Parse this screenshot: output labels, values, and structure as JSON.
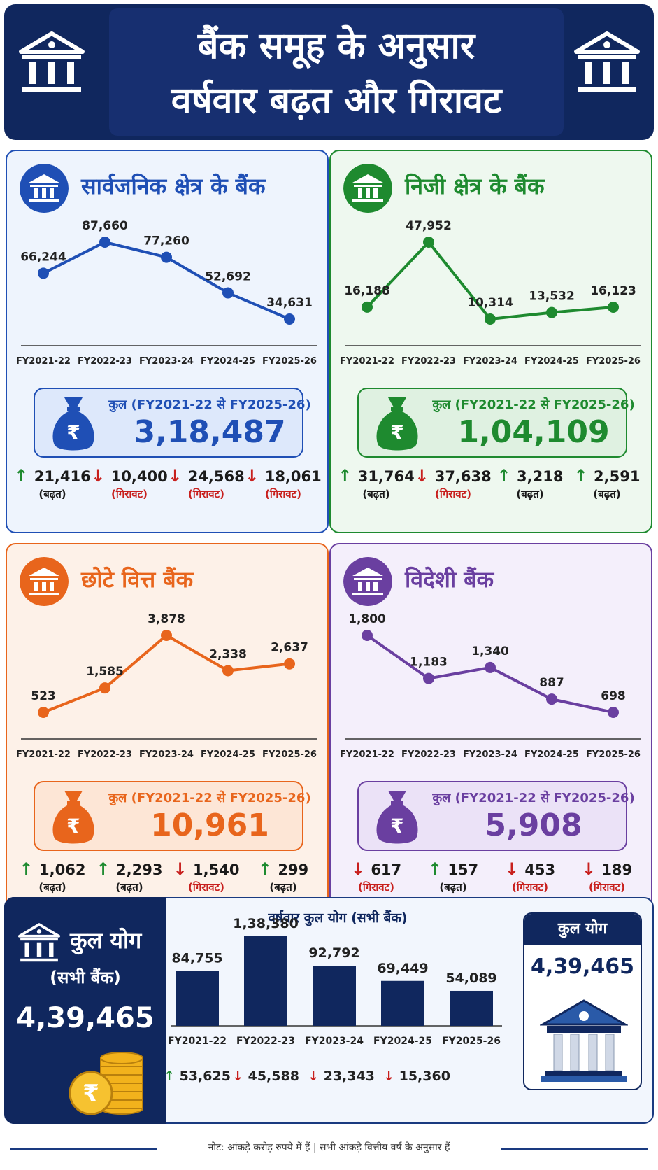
{
  "header": {
    "title_line1": "बैंक समूह के अनुसार",
    "title_line2": "वर्षवार बढ़त और गिरावट"
  },
  "colors": {
    "navy": "#10275e",
    "public": "#1f4fb5",
    "private": "#1e8a2f",
    "small": "#e8651c",
    "foreign": "#6a3fa0",
    "up": "#1e8a2f",
    "down": "#c8201e"
  },
  "panels": [
    {
      "title": "सार्वजनिक क्षेत्र के बैंक",
      "total_label": "कुल (FY2021-22 से FY2025-26)",
      "total_value": "3,18,487",
      "changes": [
        {
          "value": "21,416",
          "label": "(बढ़त)",
          "dir": "up"
        },
        {
          "value": "10,400",
          "label": "(गिरावट)",
          "dir": "down"
        },
        {
          "value": "24,568",
          "label": "(गिरावट)",
          "dir": "down"
        },
        {
          "value": "18,061",
          "label": "(गिरावट)",
          "dir": "down"
        }
      ]
    },
    {
      "title": "निजी क्षेत्र के बैंक",
      "total_label": "कुल (FY2021-22 से FY2025-26)",
      "total_value": "1,04,109",
      "changes": [
        {
          "value": "31,764",
          "label": "(बढ़त)",
          "dir": "up"
        },
        {
          "value": "37,638",
          "label": "(गिरावट)",
          "dir": "down"
        },
        {
          "value": "3,218",
          "label": "(बढ़त)",
          "dir": "up"
        },
        {
          "value": "2,591",
          "label": "(बढ़त)",
          "dir": "up"
        }
      ]
    },
    {
      "title": "छोटे वित्त बैंक",
      "total_label": "कुल (FY2021-22 से FY2025-26)",
      "total_value": "10,961",
      "changes": [
        {
          "value": "1,062",
          "label": "(बढ़त)",
          "dir": "up"
        },
        {
          "value": "2,293",
          "label": "(बढ़त)",
          "dir": "up"
        },
        {
          "value": "1,540",
          "label": "(गिरावट)",
          "dir": "down"
        },
        {
          "value": "299",
          "label": "(बढ़त)",
          "dir": "up"
        }
      ]
    },
    {
      "title": "विदेशी बैंक",
      "total_label": "कुल (FY2021-22 से FY2025-26)",
      "total_value": "5,908",
      "changes": [
        {
          "value": "617",
          "label": "(गिरावट)",
          "dir": "down"
        },
        {
          "value": "157",
          "label": "(बढ़त)",
          "dir": "up"
        },
        {
          "value": "453",
          "label": "(गिरावट)",
          "dir": "down"
        },
        {
          "value": "189",
          "label": "(गिरावट)",
          "dir": "down"
        }
      ]
    }
  ],
  "bottom": {
    "title": "कुल योग",
    "subtitle": "(सभी बैंक)",
    "value": "4,39,465",
    "chart_title": "वर्षवार कुल योग (सभी बैंक)",
    "card_title": "कुल योग",
    "card_value": "4,39,465",
    "changes": [
      {
        "value": "53,625",
        "dir": "up"
      },
      {
        "value": "45,588",
        "dir": "down"
      },
      {
        "value": "23,343",
        "dir": "down"
      },
      {
        "value": "15,360",
        "dir": "down"
      }
    ]
  },
  "footer": {
    "note": "नोट: आंकड़े करोड़ रुपये में हैं | सभी आंकड़े वित्तीय वर्ष के अनुसार हैं"
  },
  "chart_data": [
    {
      "type": "line",
      "title": "सार्वजनिक क्षेत्र के बैंक",
      "categories": [
        "FY2021-22",
        "FY2022-23",
        "FY2023-24",
        "FY2024-25",
        "FY2025-26"
      ],
      "values": [
        66244,
        87660,
        77260,
        52692,
        34631
      ],
      "labels": [
        "66,244",
        "87,660",
        "77,260",
        "52,692",
        "34,631"
      ],
      "color": "#1f4fb5"
    },
    {
      "type": "line",
      "title": "निजी क्षेत्र के बैंक",
      "categories": [
        "FY2021-22",
        "FY2022-23",
        "FY2023-24",
        "FY2024-25",
        "FY2025-26"
      ],
      "values": [
        16188,
        47952,
        10314,
        13532,
        16123
      ],
      "labels": [
        "16,188",
        "47,952",
        "10,314",
        "13,532",
        "16,123"
      ],
      "color": "#1e8a2f"
    },
    {
      "type": "line",
      "title": "छोटे वित्त बैंक",
      "categories": [
        "FY2021-22",
        "FY2022-23",
        "FY2023-24",
        "FY2024-25",
        "FY2025-26"
      ],
      "values": [
        523,
        1585,
        3878,
        2338,
        2637
      ],
      "labels": [
        "523",
        "1,585",
        "3,878",
        "2,338",
        "2,637"
      ],
      "color": "#e8651c"
    },
    {
      "type": "line",
      "title": "विदेशी बैंक",
      "categories": [
        "FY2021-22",
        "FY2022-23",
        "FY2023-24",
        "FY2024-25",
        "FY2025-26"
      ],
      "values": [
        1800,
        1183,
        1340,
        887,
        698
      ],
      "labels": [
        "1,800",
        "1,183",
        "1,340",
        "887",
        "698"
      ],
      "color": "#6a3fa0"
    },
    {
      "type": "bar",
      "title": "वर्षवार कुल योग (सभी बैंक)",
      "categories": [
        "FY2021-22",
        "FY2022-23",
        "FY2023-24",
        "FY2024-25",
        "FY2025-26"
      ],
      "values": [
        84755,
        138380,
        92792,
        69449,
        54089
      ],
      "labels": [
        "84,755",
        "1,38,380",
        "92,792",
        "69,449",
        "54,089"
      ],
      "color": "#10275e"
    }
  ]
}
